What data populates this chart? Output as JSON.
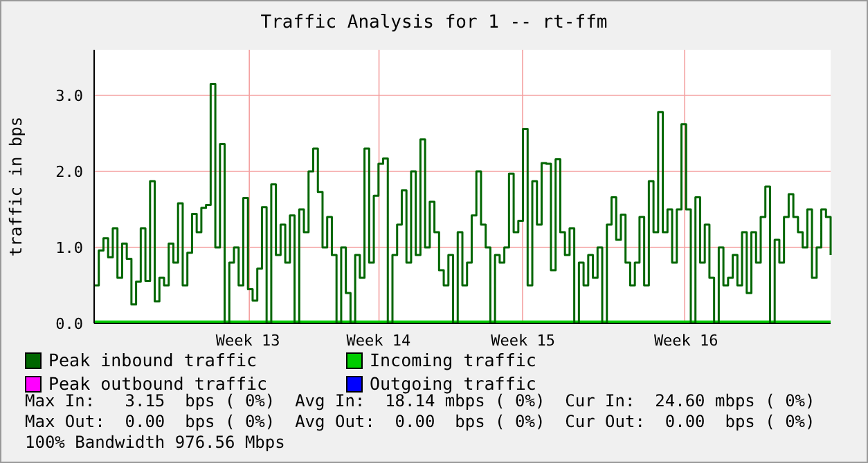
{
  "chart_data": {
    "type": "step",
    "title": "Traffic Analysis for 1 -- rt-ffm",
    "ylabel": "traffic in bps",
    "categories": [
      null,
      null,
      null,
      null,
      null,
      null,
      null,
      null,
      null,
      null,
      null,
      null,
      null,
      null,
      null,
      null,
      null,
      null,
      null,
      null,
      null,
      null,
      null,
      null,
      null,
      null,
      null,
      null,
      null,
      null,
      null,
      null,
      null,
      "Week 13",
      null,
      null,
      null,
      null,
      null,
      null,
      null,
      null,
      null,
      null,
      null,
      null,
      null,
      null,
      null,
      null,
      null,
      null,
      null,
      null,
      null,
      null,
      null,
      null,
      null,
      null,
      null,
      "Week 14",
      null,
      null,
      null,
      null,
      null,
      null,
      null,
      null,
      null,
      null,
      null,
      null,
      null,
      null,
      null,
      null,
      null,
      null,
      null,
      null,
      null,
      null,
      null,
      null,
      null,
      null,
      null,
      null,
      null,
      null,
      "Week 15",
      null,
      null,
      null,
      null,
      null,
      null,
      null,
      null,
      null,
      null,
      null,
      null,
      null,
      null,
      null,
      null,
      null,
      null,
      null,
      null,
      null,
      null,
      null,
      null,
      null,
      null,
      null,
      null,
      null,
      null,
      null,
      null,
      null,
      null,
      "Week 16",
      null,
      null,
      null,
      null,
      null,
      null,
      null,
      null,
      null,
      null,
      null,
      null,
      null,
      null,
      null,
      null,
      null,
      null,
      null,
      null,
      null,
      null,
      null,
      null,
      null,
      null,
      null,
      null,
      null,
      null,
      null
    ],
    "ylim": [
      0,
      3.6
    ],
    "yticks": [
      {
        "value": 0,
        "label": "0.0"
      },
      {
        "value": 1,
        "label": "1.0"
      },
      {
        "value": 2,
        "label": "2.0"
      },
      {
        "value": 3,
        "label": "3.0"
      }
    ],
    "grid": true,
    "legend": "bottom",
    "series": [
      {
        "name": "Peak inbound traffic",
        "color": "#006600",
        "type": "step",
        "values": [
          0.5,
          0.96,
          1.12,
          0.87,
          1.25,
          0.6,
          1.05,
          0.85,
          0.25,
          0.55,
          1.25,
          0.56,
          1.87,
          0.29,
          0.6,
          0.5,
          1.05,
          0.8,
          1.58,
          0.5,
          0.93,
          1.44,
          1.2,
          1.52,
          1.56,
          3.15,
          1.0,
          2.36,
          0,
          0.8,
          1.0,
          0.5,
          1.65,
          0.45,
          0.3,
          0.72,
          1.53,
          0,
          1.83,
          0.9,
          1.3,
          0.8,
          1.42,
          0,
          1.5,
          1.2,
          2.0,
          2.3,
          1.73,
          1.0,
          1.4,
          0.9,
          0,
          1.0,
          0.4,
          0,
          0.9,
          0.6,
          2.3,
          0.8,
          1.68,
          2.1,
          2.17,
          0,
          0.9,
          1.3,
          1.75,
          0.8,
          2.0,
          0.9,
          2.42,
          1.0,
          1.6,
          1.2,
          0.7,
          0.5,
          0.9,
          0,
          1.2,
          0.5,
          0.8,
          1.42,
          2.0,
          1.3,
          1.0,
          0,
          0.9,
          0.8,
          1.0,
          1.97,
          1.2,
          1.35,
          2.56,
          0.5,
          1.87,
          1.3,
          2.11,
          2.1,
          0.7,
          2.16,
          1.2,
          0.9,
          1.25,
          0,
          0.8,
          0.5,
          0.9,
          0.6,
          1.0,
          0,
          1.3,
          1.66,
          1.1,
          1.43,
          0.8,
          0.5,
          0.8,
          1.4,
          0.5,
          1.87,
          1.2,
          2.78,
          1.2,
          1.5,
          0.8,
          1.5,
          2.62,
          1.5,
          0,
          1.66,
          0.8,
          1.3,
          0.6,
          0,
          1.0,
          0.5,
          0.6,
          0.9,
          0.5,
          1.2,
          0.4,
          1.2,
          0.8,
          1.4,
          1.8,
          0,
          1.1,
          0.8,
          1.4,
          1.7,
          1.4,
          1.2,
          1.0,
          1.5,
          0.6,
          1.0,
          1.5,
          1.4,
          0.9
        ]
      },
      {
        "name": "Incoming traffic",
        "color": "#00cc00",
        "type": "area",
        "values": [
          0.02,
          0.02,
          0.02,
          0.02,
          0.02,
          0.02,
          0.02,
          0.02,
          0.02,
          0.02,
          0.02,
          0.02,
          0.02,
          0.02,
          0.02,
          0.02,
          0.02,
          0.02,
          0.02,
          0.02,
          0.02,
          0.02,
          0.02,
          0.02,
          0.02,
          0.02,
          0.02,
          0.02,
          0.02,
          0.02,
          0.02,
          0.02,
          0.02,
          0.02,
          0.02,
          0.02,
          0.02,
          0.02,
          0.02,
          0.02,
          0.02,
          0.02,
          0.02,
          0.02,
          0.02,
          0.02,
          0.02,
          0.02,
          0.02,
          0.02,
          0.02,
          0.02,
          0.02,
          0.02,
          0.02,
          0.02,
          0.02,
          0.02,
          0.02,
          0.02,
          0.02,
          0.02,
          0.02,
          0.02,
          0.02,
          0.02,
          0.02,
          0.02,
          0.02,
          0.02,
          0.02,
          0.02,
          0.02,
          0.02,
          0.02,
          0.02,
          0.02,
          0.02,
          0.02,
          0.02,
          0.02,
          0.02,
          0.02,
          0.02,
          0.02,
          0.02,
          0.02,
          0.02,
          0.02,
          0.02,
          0.02,
          0.02,
          0.02,
          0.02,
          0.02,
          0.02,
          0.02,
          0.02,
          0.02,
          0.02,
          0.02,
          0.02,
          0.02,
          0.02,
          0.02,
          0.02,
          0.02,
          0.02,
          0.02,
          0.02,
          0.02,
          0.02,
          0.02,
          0.02,
          0.02,
          0.02,
          0.02,
          0.02,
          0.02,
          0.02,
          0.02,
          0.02,
          0.02,
          0.02,
          0.02,
          0.02,
          0.02,
          0.02,
          0.02,
          0.02,
          0.02,
          0.02,
          0.02,
          0.02,
          0.02,
          0.02,
          0.02,
          0.02,
          0.02,
          0.02,
          0.02,
          0.02,
          0.02,
          0.02,
          0.02,
          0.02,
          0.02,
          0.02,
          0.02,
          0.02,
          0.02,
          0.02,
          0.02,
          0.02,
          0.02,
          0.02,
          0.02,
          0.02,
          0.02
        ]
      },
      {
        "name": "Peak outbound traffic",
        "color": "#ff00ff",
        "type": "line",
        "values": [
          null,
          null,
          null,
          null,
          null,
          null,
          null,
          null,
          null,
          null,
          null,
          null,
          null,
          null,
          null,
          null,
          null,
          null,
          null,
          null,
          null,
          null,
          null,
          null,
          null,
          null,
          null,
          null,
          null,
          null,
          null,
          null,
          null,
          null,
          null,
          null,
          null,
          null,
          null,
          null,
          null,
          null,
          null,
          null,
          null,
          null,
          null,
          null,
          null,
          null,
          null,
          null,
          null,
          null,
          null,
          null,
          null,
          null,
          null,
          null,
          null,
          null,
          null,
          null,
          null,
          null,
          null,
          null,
          null,
          null,
          null,
          null,
          null,
          null,
          null,
          null,
          null,
          null,
          null,
          null,
          null,
          null,
          null,
          null,
          null,
          null,
          null,
          null,
          null,
          null,
          null,
          null,
          null,
          null,
          null,
          null,
          null,
          null,
          null,
          null,
          null,
          null,
          null,
          null,
          null,
          null,
          null,
          null,
          null,
          null,
          null,
          null,
          null,
          null,
          null,
          null,
          null,
          null,
          null,
          null,
          null,
          null,
          null,
          null,
          null,
          null,
          null,
          null,
          null,
          null,
          null,
          null,
          null,
          null,
          null,
          null,
          null,
          null,
          null,
          null,
          null,
          null,
          null,
          null,
          null,
          null,
          null,
          null,
          null,
          null,
          null,
          null,
          null,
          null,
          null,
          null,
          null,
          null,
          null
        ]
      },
      {
        "name": "Outgoing traffic",
        "color": "#0000ff",
        "type": "line",
        "values": [
          null,
          null,
          null,
          null,
          null,
          null,
          null,
          null,
          null,
          null,
          null,
          null,
          null,
          null,
          null,
          null,
          null,
          null,
          null,
          null,
          null,
          null,
          null,
          null,
          null,
          null,
          null,
          null,
          null,
          null,
          null,
          null,
          null,
          null,
          null,
          null,
          null,
          null,
          null,
          null,
          null,
          null,
          null,
          null,
          null,
          null,
          null,
          null,
          null,
          null,
          null,
          null,
          null,
          null,
          null,
          null,
          null,
          null,
          null,
          null,
          null,
          null,
          null,
          null,
          null,
          null,
          null,
          null,
          null,
          null,
          null,
          null,
          null,
          null,
          null,
          null,
          null,
          null,
          null,
          null,
          null,
          null,
          null,
          null,
          null,
          null,
          null,
          null,
          null,
          null,
          null,
          null,
          null,
          null,
          null,
          null,
          null,
          null,
          null,
          null,
          null,
          null,
          null,
          null,
          null,
          null,
          null,
          null,
          null,
          null,
          null,
          null,
          null,
          null,
          null,
          null,
          null,
          null,
          null,
          null,
          null,
          null,
          null,
          null,
          null,
          null,
          null,
          null,
          null,
          null,
          null,
          null,
          null,
          null,
          null,
          null,
          null,
          null,
          null,
          null,
          null,
          null,
          null,
          null,
          null,
          null,
          null,
          null,
          null,
          null,
          null,
          null,
          null,
          null,
          null,
          null,
          null,
          null,
          null
        ]
      }
    ],
    "annotations": [
      "Max In:   3.15  bps ( 0%)  Avg In:  18.14 mbps ( 0%)  Cur In:  24.60 mbps ( 0%)",
      "Max Out:  0.00  bps ( 0%)  Avg Out:  0.00  bps ( 0%)  Cur Out:  0.00  bps ( 0%)",
      "100% Bandwidth 976.56 Mbps"
    ]
  }
}
